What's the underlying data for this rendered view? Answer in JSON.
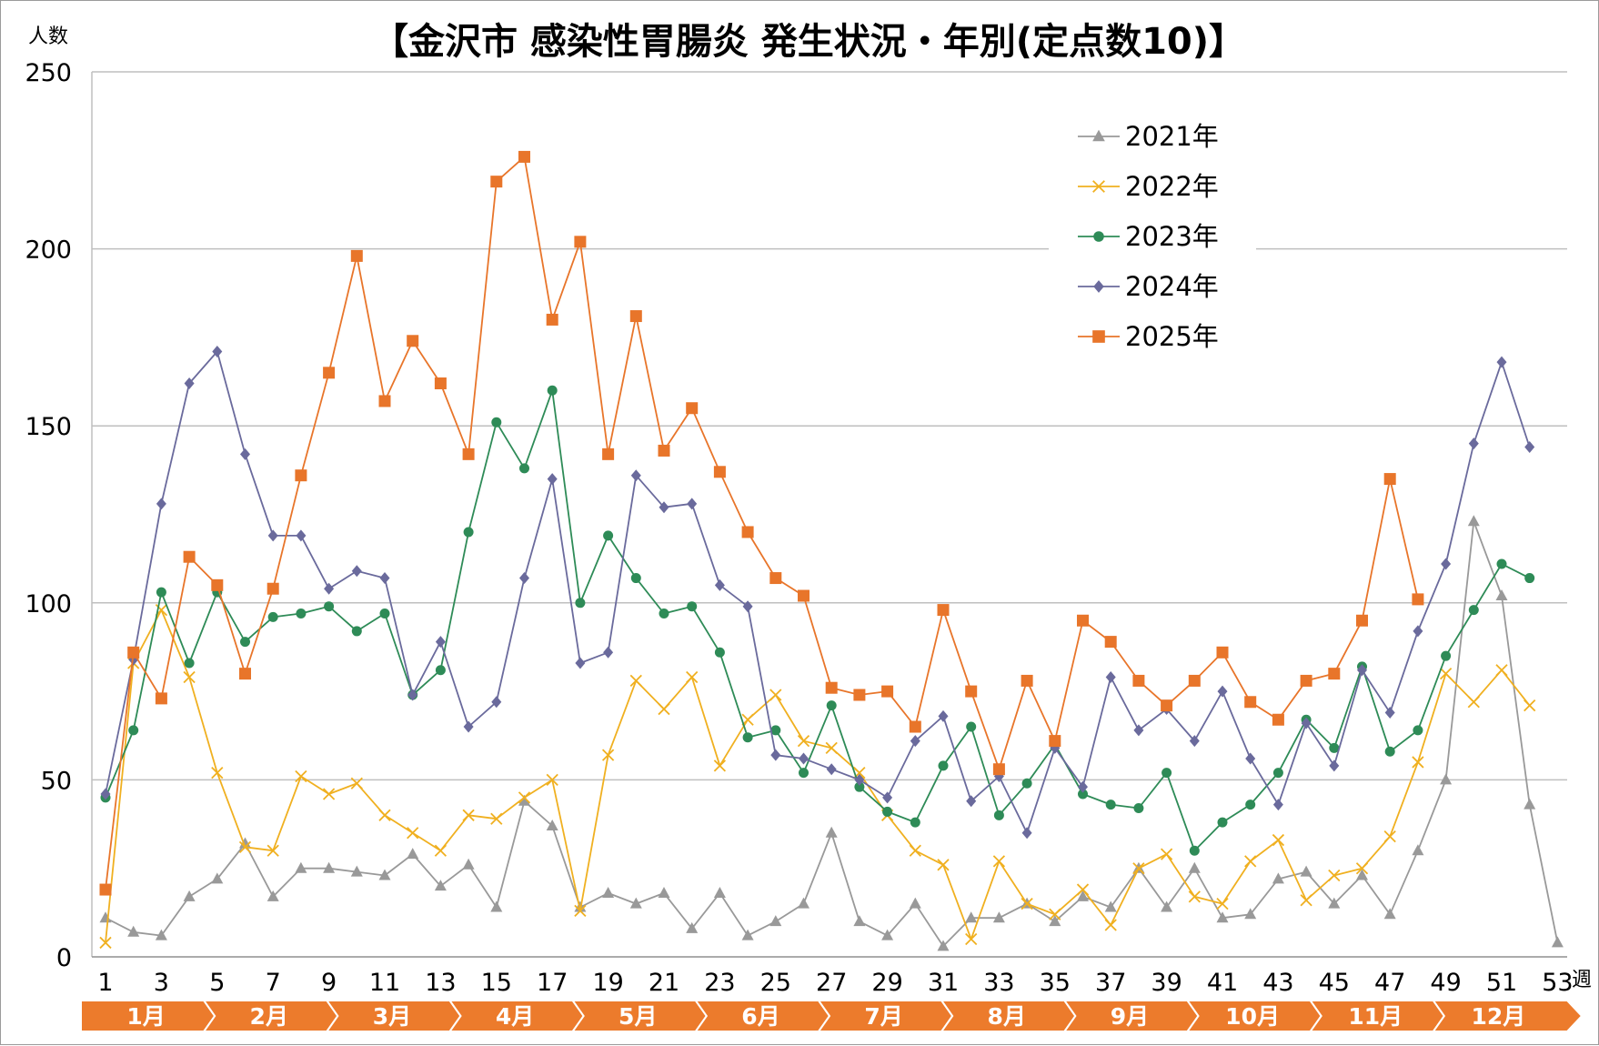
{
  "chart_data": {
    "type": "line",
    "title": "【金沢市  感染性胃腸炎  発生状況・年別(定点数10)】",
    "ylabel": "人数",
    "xlabel": "週",
    "ylim": [
      0,
      250
    ],
    "yticks": [
      0,
      50,
      100,
      150,
      200,
      250
    ],
    "xlim": [
      1,
      53
    ],
    "xticks": [
      1,
      3,
      5,
      7,
      9,
      11,
      13,
      15,
      17,
      19,
      21,
      23,
      25,
      27,
      29,
      31,
      33,
      35,
      37,
      39,
      41,
      43,
      45,
      47,
      49,
      51,
      53
    ],
    "grid": true,
    "legend_position": "top-right",
    "months": [
      "1月",
      "2月",
      "3月",
      "4月",
      "5月",
      "6月",
      "7月",
      "8月",
      "9月",
      "10月",
      "11月",
      "12月"
    ],
    "series": [
      {
        "name": "2021年",
        "color": "#999999",
        "marker": "triangle",
        "values": [
          11,
          7,
          6,
          17,
          22,
          32,
          17,
          25,
          25,
          24,
          23,
          29,
          20,
          26,
          14,
          44,
          37,
          14,
          18,
          15,
          18,
          8,
          18,
          6,
          10,
          15,
          35,
          10,
          6,
          15,
          3,
          11,
          11,
          15,
          10,
          17,
          14,
          25,
          14,
          25,
          11,
          12,
          22,
          24,
          15,
          23,
          12,
          30,
          50,
          123,
          102,
          43,
          4
        ]
      },
      {
        "name": "2022年",
        "color": "#f0b020",
        "marker": "x",
        "values": [
          4,
          83,
          98,
          79,
          52,
          31,
          30,
          51,
          46,
          49,
          40,
          35,
          30,
          40,
          39,
          45,
          50,
          13,
          57,
          78,
          70,
          79,
          54,
          67,
          74,
          61,
          59,
          52,
          40,
          30,
          26,
          5,
          27,
          15,
          12,
          19,
          9,
          25,
          29,
          17,
          15,
          27,
          33,
          16,
          23,
          25,
          34,
          55,
          80,
          72,
          81,
          71
        ]
      },
      {
        "name": "2023年",
        "color": "#2e8b57",
        "marker": "circle",
        "values": [
          45,
          64,
          103,
          83,
          103,
          89,
          96,
          97,
          99,
          92,
          97,
          74,
          81,
          120,
          151,
          138,
          160,
          100,
          119,
          107,
          97,
          99,
          86,
          62,
          64,
          52,
          71,
          48,
          41,
          38,
          54,
          65,
          40,
          49,
          60,
          46,
          43,
          42,
          52,
          30,
          38,
          43,
          52,
          67,
          59,
          82,
          58,
          64,
          85,
          98,
          111,
          107
        ]
      },
      {
        "name": "2024年",
        "color": "#6a6a9c",
        "marker": "diamond",
        "values": [
          46,
          84,
          128,
          162,
          171,
          142,
          119,
          119,
          104,
          109,
          107,
          74,
          89,
          65,
          72,
          107,
          135,
          83,
          86,
          136,
          127,
          128,
          105,
          99,
          57,
          56,
          53,
          50,
          45,
          61,
          68,
          44,
          51,
          35,
          59,
          48,
          79,
          64,
          70,
          61,
          75,
          56,
          43,
          66,
          54,
          81,
          69,
          92,
          111,
          145,
          168,
          144
        ]
      },
      {
        "name": "2025年",
        "color": "#e8752a",
        "marker": "square",
        "values": [
          19,
          86,
          73,
          113,
          105,
          80,
          104,
          136,
          165,
          198,
          157,
          174,
          162,
          142,
          219,
          226,
          180,
          202,
          142,
          181,
          143,
          155,
          137,
          120,
          107,
          102,
          76,
          74,
          75,
          65,
          98,
          75,
          53,
          78,
          61,
          95,
          89,
          78,
          71,
          78,
          86,
          72,
          67,
          78,
          80,
          95,
          135,
          101
        ]
      }
    ]
  }
}
